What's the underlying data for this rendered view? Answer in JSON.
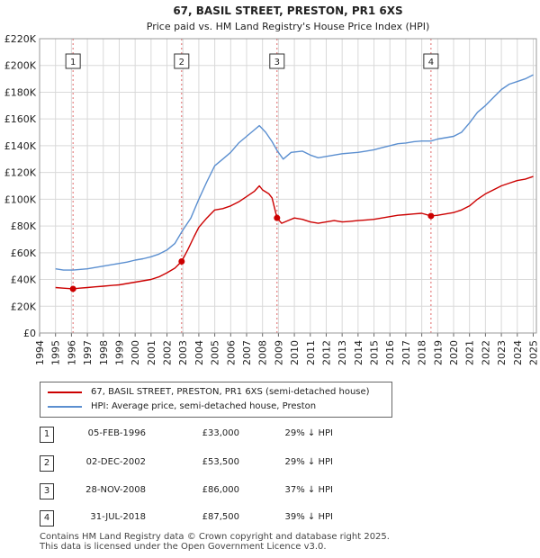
{
  "chart_data": {
    "type": "line",
    "title": "67, BASIL STREET, PRESTON, PR1 6XS",
    "subtitle": "Price paid vs. HM Land Registry's House Price Index (HPI)",
    "xlim": [
      1994,
      2025.2
    ],
    "ylim": [
      0,
      220000
    ],
    "x_ticks": [
      "1994",
      "1995",
      "1996",
      "1997",
      "1998",
      "1999",
      "2000",
      "2001",
      "2002",
      "2003",
      "2004",
      "2005",
      "2006",
      "2007",
      "2008",
      "2009",
      "2010",
      "2011",
      "2012",
      "2013",
      "2014",
      "2015",
      "2016",
      "2017",
      "2018",
      "2019",
      "2020",
      "2021",
      "2022",
      "2023",
      "2024",
      "2025"
    ],
    "y_ticks": [
      {
        "value": 0,
        "label": "£0"
      },
      {
        "value": 20000,
        "label": "£20K"
      },
      {
        "value": 40000,
        "label": "£40K"
      },
      {
        "value": 60000,
        "label": "£60K"
      },
      {
        "value": 80000,
        "label": "£80K"
      },
      {
        "value": 100000,
        "label": "£100K"
      },
      {
        "value": 120000,
        "label": "£120K"
      },
      {
        "value": 140000,
        "label": "£140K"
      },
      {
        "value": 160000,
        "label": "£160K"
      },
      {
        "value": 180000,
        "label": "£180K"
      },
      {
        "value": 200000,
        "label": "£200K"
      },
      {
        "value": 220000,
        "label": "£220K"
      }
    ],
    "grid": true,
    "series": [
      {
        "name": "67, BASIL STREET, PRESTON, PR1 6XS (semi-detached house)",
        "color": "#cc0000",
        "points": [
          [
            1995.0,
            34000
          ],
          [
            1995.5,
            33500
          ],
          [
            1996.1,
            33000
          ],
          [
            1996.5,
            33500
          ],
          [
            1997.0,
            34000
          ],
          [
            1997.5,
            34500
          ],
          [
            1998.0,
            35000
          ],
          [
            1998.5,
            35500
          ],
          [
            1999.0,
            36000
          ],
          [
            1999.5,
            37000
          ],
          [
            2000.0,
            38000
          ],
          [
            2000.5,
            39000
          ],
          [
            2001.0,
            40000
          ],
          [
            2001.5,
            42000
          ],
          [
            2002.0,
            45000
          ],
          [
            2002.5,
            48500
          ],
          [
            2002.92,
            53500
          ],
          [
            2003.3,
            62000
          ],
          [
            2003.7,
            72000
          ],
          [
            2004.0,
            79000
          ],
          [
            2004.5,
            86000
          ],
          [
            2005.0,
            92000
          ],
          [
            2005.5,
            93000
          ],
          [
            2006.0,
            95000
          ],
          [
            2006.5,
            98000
          ],
          [
            2007.0,
            102000
          ],
          [
            2007.5,
            106000
          ],
          [
            2007.8,
            110000
          ],
          [
            2008.0,
            107000
          ],
          [
            2008.4,
            104000
          ],
          [
            2008.6,
            101000
          ],
          [
            2008.91,
            86000
          ],
          [
            2009.2,
            82000
          ],
          [
            2009.6,
            84000
          ],
          [
            2010.0,
            86000
          ],
          [
            2010.5,
            85000
          ],
          [
            2011.0,
            83000
          ],
          [
            2011.5,
            82000
          ],
          [
            2012.0,
            83000
          ],
          [
            2012.5,
            84000
          ],
          [
            2013.0,
            83000
          ],
          [
            2013.5,
            83500
          ],
          [
            2014.0,
            84000
          ],
          [
            2014.5,
            84500
          ],
          [
            2015.0,
            85000
          ],
          [
            2015.5,
            86000
          ],
          [
            2016.0,
            87000
          ],
          [
            2016.5,
            88000
          ],
          [
            2017.0,
            88500
          ],
          [
            2017.5,
            89000
          ],
          [
            2018.0,
            89500
          ],
          [
            2018.58,
            87500
          ],
          [
            2019.0,
            88000
          ],
          [
            2019.5,
            89000
          ],
          [
            2020.0,
            90000
          ],
          [
            2020.5,
            92000
          ],
          [
            2021.0,
            95000
          ],
          [
            2021.5,
            100000
          ],
          [
            2022.0,
            104000
          ],
          [
            2022.5,
            107000
          ],
          [
            2023.0,
            110000
          ],
          [
            2023.5,
            112000
          ],
          [
            2024.0,
            114000
          ],
          [
            2024.5,
            115000
          ],
          [
            2025.0,
            117000
          ]
        ]
      },
      {
        "name": "HPI: Average price, semi-detached house, Preston",
        "color": "#5b8fd0",
        "points": [
          [
            1995.0,
            48000
          ],
          [
            1995.5,
            47000
          ],
          [
            1996.1,
            47000
          ],
          [
            1996.5,
            47500
          ],
          [
            1997.0,
            48000
          ],
          [
            1997.5,
            49000
          ],
          [
            1998.0,
            50000
          ],
          [
            1998.5,
            51000
          ],
          [
            1999.0,
            52000
          ],
          [
            1999.5,
            53000
          ],
          [
            2000.0,
            54500
          ],
          [
            2000.5,
            55500
          ],
          [
            2001.0,
            57000
          ],
          [
            2001.5,
            59000
          ],
          [
            2002.0,
            62000
          ],
          [
            2002.5,
            67000
          ],
          [
            2002.92,
            75500
          ],
          [
            2003.5,
            86000
          ],
          [
            2004.0,
            100000
          ],
          [
            2004.5,
            113000
          ],
          [
            2005.0,
            125000
          ],
          [
            2005.5,
            130000
          ],
          [
            2006.0,
            135000
          ],
          [
            2006.5,
            142000
          ],
          [
            2007.0,
            147000
          ],
          [
            2007.5,
            152000
          ],
          [
            2007.8,
            155000
          ],
          [
            2008.2,
            150000
          ],
          [
            2008.6,
            143000
          ],
          [
            2008.91,
            136500
          ],
          [
            2009.3,
            130000
          ],
          [
            2009.8,
            135000
          ],
          [
            2010.5,
            136000
          ],
          [
            2011.0,
            133000
          ],
          [
            2011.5,
            131000
          ],
          [
            2012.0,
            132000
          ],
          [
            2012.5,
            133000
          ],
          [
            2013.0,
            134000
          ],
          [
            2013.5,
            134500
          ],
          [
            2014.0,
            135000
          ],
          [
            2014.5,
            136000
          ],
          [
            2015.0,
            137000
          ],
          [
            2015.5,
            138500
          ],
          [
            2016.0,
            140000
          ],
          [
            2016.5,
            141500
          ],
          [
            2017.0,
            142000
          ],
          [
            2017.5,
            143000
          ],
          [
            2018.0,
            143500
          ],
          [
            2018.58,
            143500
          ],
          [
            2019.0,
            145000
          ],
          [
            2019.5,
            146000
          ],
          [
            2020.0,
            147000
          ],
          [
            2020.5,
            150000
          ],
          [
            2021.0,
            157000
          ],
          [
            2021.5,
            165000
          ],
          [
            2022.0,
            170000
          ],
          [
            2022.5,
            176000
          ],
          [
            2023.0,
            182000
          ],
          [
            2023.5,
            186000
          ],
          [
            2024.0,
            188000
          ],
          [
            2024.5,
            190000
          ],
          [
            2025.0,
            193000
          ]
        ]
      }
    ],
    "sales": [
      {
        "label": "1",
        "x": 1996.1,
        "y": 33000
      },
      {
        "label": "2",
        "x": 2002.92,
        "y": 53500
      },
      {
        "label": "3",
        "x": 2008.91,
        "y": 86000
      },
      {
        "label": "4",
        "x": 2018.58,
        "y": 87500
      }
    ]
  },
  "legend": {
    "items": [
      {
        "label": "67, BASIL STREET, PRESTON, PR1 6XS (semi-detached house)",
        "color": "#cc0000"
      },
      {
        "label": "HPI: Average price, semi-detached house, Preston",
        "color": "#5b8fd0"
      }
    ]
  },
  "transactions": [
    {
      "num": "1",
      "date": "05-FEB-1996",
      "price": "£33,000",
      "hpi": "29% ↓ HPI"
    },
    {
      "num": "2",
      "date": "02-DEC-2002",
      "price": "£53,500",
      "hpi": "29% ↓ HPI"
    },
    {
      "num": "3",
      "date": "28-NOV-2008",
      "price": "£86,000",
      "hpi": "37% ↓ HPI"
    },
    {
      "num": "4",
      "date": "31-JUL-2018",
      "price": "£87,500",
      "hpi": "39% ↓ HPI"
    }
  ],
  "footer": {
    "line1": "Contains HM Land Registry data © Crown copyright and database right 2025.",
    "line2": "This data is licensed under the Open Government Licence v3.0."
  }
}
